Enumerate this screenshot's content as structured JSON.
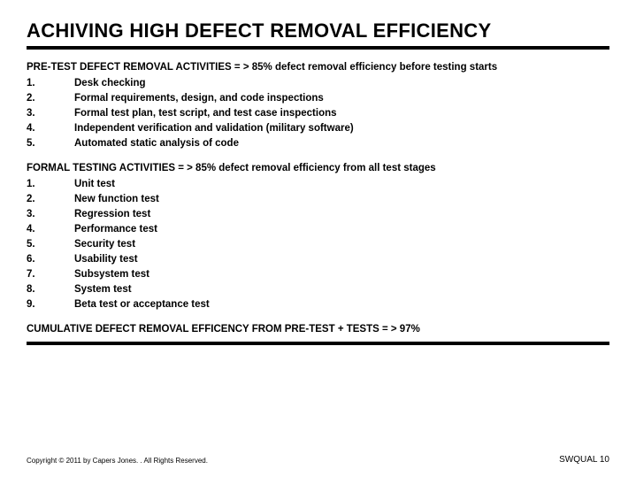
{
  "title": "ACHIVING HIGH DEFECT REMOVAL EFFICIENCY",
  "section1": {
    "header": "PRE-TEST DEFECT REMOVAL ACTIVITIES = > 85% defect removal efficiency before testing starts",
    "items": [
      {
        "n": "1.",
        "t": "Desk checking"
      },
      {
        "n": "2.",
        "t": "Formal requirements, design, and code inspections"
      },
      {
        "n": "3.",
        "t": "Formal test plan, test script, and test case inspections"
      },
      {
        "n": "4.",
        "t": "Independent verification and validation (military software)"
      },
      {
        "n": "5.",
        "t": "Automated static analysis of code"
      }
    ]
  },
  "section2": {
    "header": "FORMAL TESTING ACTIVITIES = > 85% defect removal efficiency from all test stages",
    "items": [
      {
        "n": "1.",
        "t": "Unit test"
      },
      {
        "n": "2.",
        "t": "New function test"
      },
      {
        "n": "3.",
        "t": "Regression test"
      },
      {
        "n": "4.",
        "t": "Performance test"
      },
      {
        "n": "5.",
        "t": "Security test"
      },
      {
        "n": "6.",
        "t": "Usability test"
      },
      {
        "n": "7.",
        "t": "Subsystem test"
      },
      {
        "n": "8.",
        "t": "System test"
      },
      {
        "n": "9.",
        "t": "Beta test or acceptance test"
      }
    ]
  },
  "cumulative": "CUMULATIVE DEFECT REMOVAL EFFICENCY FROM PRE-TEST + TESTS = > 97%",
  "copyright": "Copyright © 2011 by Capers Jones. . All Rights Reserved.",
  "pagecode": "SWQUAL 10"
}
